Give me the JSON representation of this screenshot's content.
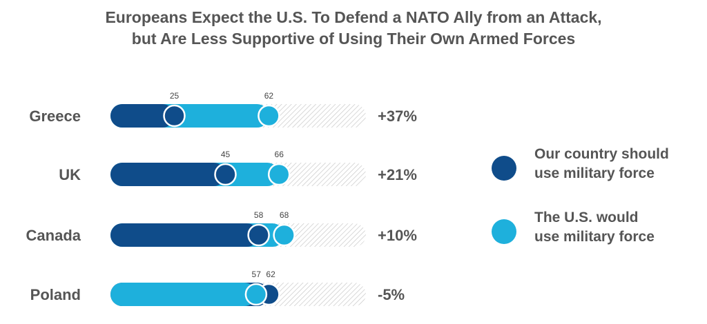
{
  "chart_data": {
    "type": "dumbbell",
    "title_lines": [
      "Europeans Expect the U.S. To Defend a NATO Ally from an Attack,",
      "but Are Less Supportive of Using Their Own Armed Forces"
    ],
    "xlim": [
      0,
      100
    ],
    "categories": [
      "Greece",
      "UK",
      "Canada",
      "Poland"
    ],
    "series": [
      {
        "name": "Our country should use military force",
        "color": "#0f4c8a",
        "values": [
          25,
          45,
          58,
          62
        ]
      },
      {
        "name": "The U.S. would use military force",
        "color": "#1eb0dc",
        "values": [
          62,
          66,
          68,
          57
        ]
      }
    ],
    "differences": [
      "+37%",
      "+21%",
      "+10%",
      "-5%"
    ],
    "legend": {
      "position": "right",
      "items": [
        {
          "lines": [
            "Our country should",
            "use military force"
          ],
          "color": "#0f4c8a"
        },
        {
          "lines": [
            "The U.S. would",
            "use military force"
          ],
          "color": "#1eb0dc"
        }
      ]
    }
  }
}
